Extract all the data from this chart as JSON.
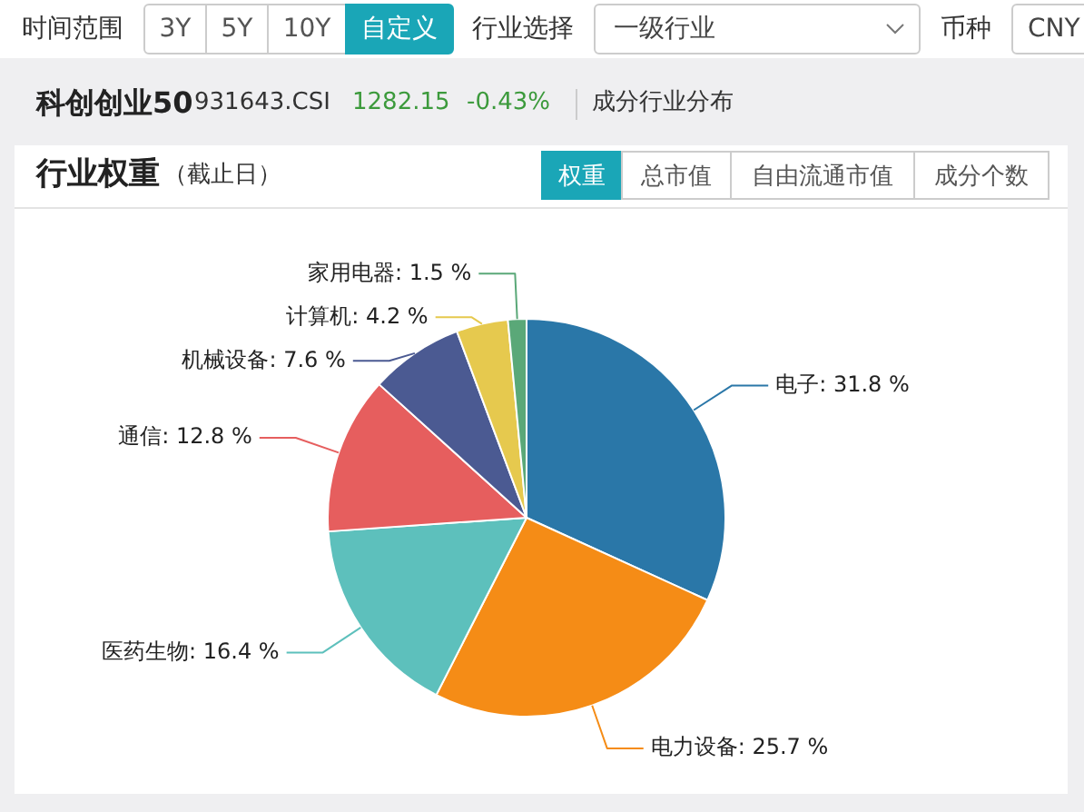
{
  "chart_data": {
    "type": "pie",
    "title": "行业权重",
    "subtitle": "（截止日）",
    "categories": [
      "电子",
      "电力设备",
      "医药生物",
      "通信",
      "机械设备",
      "计算机",
      "家用电器"
    ],
    "values": [
      31.8,
      25.7,
      16.4,
      12.8,
      7.6,
      4.2,
      1.5
    ],
    "colors": [
      "#2a77a8",
      "#f58c16",
      "#5dc0bc",
      "#e65e5e",
      "#4b5a92",
      "#e6c94e",
      "#5aa878"
    ],
    "value_labels": [
      "31.8 %",
      "25.7 %",
      "16.4 %",
      "12.8 %",
      "7.6 %",
      "4.2 %",
      "1.5 %"
    ],
    "annotations": [
      "时间范围",
      "3Y",
      "5Y",
      "10Y",
      "自定义",
      "行业选择",
      "一级行业",
      "币种",
      "CNY",
      "科创创业50",
      "931643.CSI",
      "1282.15",
      "-0.43%",
      "成分行业分布",
      "权重",
      "总市值",
      "自由流通市值",
      "成分个数"
    ]
  }
}
